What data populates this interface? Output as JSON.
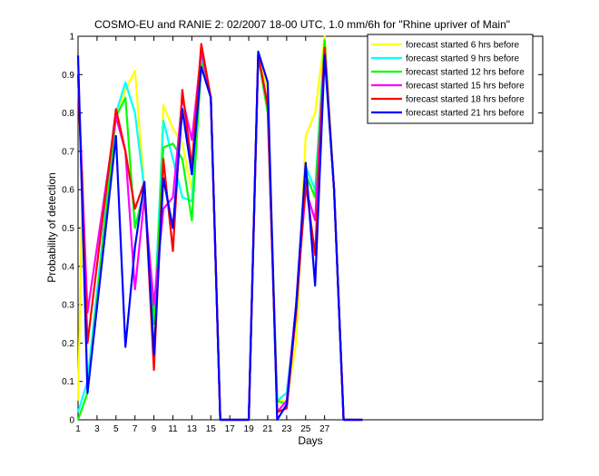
{
  "chart_data": {
    "type": "line",
    "title": "COSMO-EU and RANIE 2: 02/2007 18-00 UTC, 1.0 mm/6h for \"Rhine upriver of Main\"",
    "xlabel": "Days",
    "ylabel": "Probability of detection",
    "xlim": [
      1,
      50
    ],
    "ylim": [
      0,
      1
    ],
    "xticks": [
      1,
      3,
      5,
      7,
      9,
      11,
      13,
      15,
      17,
      19,
      21,
      23,
      25,
      27
    ],
    "yticks": [
      0,
      0.1,
      0.2,
      0.3,
      0.4,
      0.5,
      0.6,
      0.7,
      0.8,
      0.9,
      1
    ],
    "ytick_labels": [
      "0",
      "0.1",
      "0.2",
      "0.3",
      "0.4",
      "0.5",
      "0.6",
      "0.7",
      "0.8",
      "0.9",
      "1"
    ],
    "legend_position": "top-right",
    "series": [
      {
        "name": "forecast started 6 hrs before",
        "color": "#ffff00",
        "points": [
          [
            1,
            0.05
          ],
          [
            1.5,
            0.65
          ],
          [
            2,
            0.07
          ],
          [
            5,
            0.8
          ],
          [
            6,
            0.86
          ],
          [
            7,
            0.91
          ],
          [
            8,
            0.6
          ],
          [
            9,
            0.2
          ],
          [
            10,
            0.82
          ],
          [
            11,
            0.76
          ],
          [
            12,
            0.72
          ],
          [
            13,
            0.6
          ],
          [
            14,
            0.93
          ],
          [
            15,
            0.84
          ],
          [
            16,
            0
          ],
          [
            19,
            0
          ],
          [
            20,
            0.95
          ],
          [
            21,
            0.86
          ],
          [
            22,
            0.05
          ],
          [
            23,
            0.05
          ],
          [
            24,
            0.2
          ],
          [
            25,
            0.74
          ],
          [
            26,
            0.8
          ],
          [
            27,
            1.0
          ],
          [
            28,
            0.6
          ],
          [
            29,
            0
          ],
          [
            31,
            0
          ]
        ]
      },
      {
        "name": "forecast started 9 hrs before",
        "color": "#00ffff",
        "points": [
          [
            1,
            0.02
          ],
          [
            2,
            0.1
          ],
          [
            5,
            0.8
          ],
          [
            6,
            0.88
          ],
          [
            7,
            0.8
          ],
          [
            8,
            0.6
          ],
          [
            9,
            0.25
          ],
          [
            10,
            0.78
          ],
          [
            11,
            0.68
          ],
          [
            12,
            0.58
          ],
          [
            13,
            0.57
          ],
          [
            14,
            0.95
          ],
          [
            15,
            0.84
          ],
          [
            16,
            0
          ],
          [
            19,
            0
          ],
          [
            20,
            0.95
          ],
          [
            21,
            0.8
          ],
          [
            22,
            0.05
          ],
          [
            23,
            0.07
          ],
          [
            24,
            0.28
          ],
          [
            25,
            0.66
          ],
          [
            26,
            0.6
          ],
          [
            27,
            0.98
          ],
          [
            28,
            0.6
          ],
          [
            29,
            0
          ],
          [
            31,
            0
          ]
        ]
      },
      {
        "name": "forecast started 12 hrs before",
        "color": "#00ff00",
        "points": [
          [
            1,
            0.0
          ],
          [
            2,
            0.07
          ],
          [
            5,
            0.79
          ],
          [
            6,
            0.84
          ],
          [
            7,
            0.5
          ],
          [
            8,
            0.6
          ],
          [
            9,
            0.25
          ],
          [
            10,
            0.71
          ],
          [
            11,
            0.72
          ],
          [
            12,
            0.68
          ],
          [
            13,
            0.52
          ],
          [
            14,
            0.93
          ],
          [
            15,
            0.84
          ],
          [
            16,
            0
          ],
          [
            19,
            0
          ],
          [
            20,
            0.95
          ],
          [
            21,
            0.8
          ],
          [
            22,
            0.05
          ],
          [
            23,
            0.04
          ],
          [
            24,
            0.28
          ],
          [
            25,
            0.64
          ],
          [
            26,
            0.58
          ],
          [
            27,
            0.99
          ],
          [
            28,
            0.6
          ],
          [
            29,
            0
          ],
          [
            31,
            0
          ]
        ]
      },
      {
        "name": "forecast started 15 hrs before",
        "color": "#ff00ff",
        "points": [
          [
            1,
            0.9
          ],
          [
            2,
            0.28
          ],
          [
            5,
            0.79
          ],
          [
            6,
            0.7
          ],
          [
            7,
            0.34
          ],
          [
            8,
            0.58
          ],
          [
            9,
            0.3
          ],
          [
            10,
            0.55
          ],
          [
            11,
            0.58
          ],
          [
            12,
            0.84
          ],
          [
            13,
            0.73
          ],
          [
            14,
            0.96
          ],
          [
            15,
            0.84
          ],
          [
            16,
            0
          ],
          [
            19,
            0
          ],
          [
            20,
            0.95
          ],
          [
            21,
            0.82
          ],
          [
            22,
            0.02
          ],
          [
            23,
            0.05
          ],
          [
            24,
            0.3
          ],
          [
            25,
            0.6
          ],
          [
            26,
            0.52
          ],
          [
            27,
            0.97
          ],
          [
            28,
            0.6
          ],
          [
            29,
            0
          ],
          [
            31,
            0
          ]
        ]
      },
      {
        "name": "forecast started 18 hrs before",
        "color": "#ff0000",
        "points": [
          [
            1,
            0.9
          ],
          [
            2,
            0.2
          ],
          [
            5,
            0.81
          ],
          [
            6,
            0.7
          ],
          [
            7,
            0.55
          ],
          [
            8,
            0.62
          ],
          [
            9,
            0.13
          ],
          [
            10,
            0.68
          ],
          [
            11,
            0.44
          ],
          [
            12,
            0.86
          ],
          [
            13,
            0.66
          ],
          [
            14,
            0.98
          ],
          [
            15,
            0.84
          ],
          [
            16,
            0
          ],
          [
            19,
            0
          ],
          [
            20,
            0.95
          ],
          [
            21,
            0.82
          ],
          [
            22,
            0.02
          ],
          [
            23,
            0.03
          ],
          [
            24,
            0.28
          ],
          [
            25,
            0.62
          ],
          [
            26,
            0.43
          ],
          [
            27,
            0.97
          ],
          [
            28,
            0.6
          ],
          [
            29,
            0
          ],
          [
            31,
            0
          ]
        ]
      },
      {
        "name": "forecast started 21 hrs before",
        "color": "#0000ff",
        "points": [
          [
            1,
            0.95
          ],
          [
            2,
            0.07
          ],
          [
            5,
            0.74
          ],
          [
            6,
            0.19
          ],
          [
            7,
            0.45
          ],
          [
            8,
            0.62
          ],
          [
            9,
            0.17
          ],
          [
            10,
            0.63
          ],
          [
            11,
            0.5
          ],
          [
            12,
            0.81
          ],
          [
            13,
            0.64
          ],
          [
            14,
            0.92
          ],
          [
            15,
            0.84
          ],
          [
            16,
            0
          ],
          [
            19,
            0
          ],
          [
            20,
            0.96
          ],
          [
            21,
            0.88
          ],
          [
            22,
            0.0
          ],
          [
            23,
            0.04
          ],
          [
            24,
            0.3
          ],
          [
            25,
            0.67
          ],
          [
            26,
            0.35
          ],
          [
            27,
            0.95
          ],
          [
            28,
            0.6
          ],
          [
            29,
            0
          ],
          [
            31,
            0
          ]
        ]
      }
    ]
  }
}
